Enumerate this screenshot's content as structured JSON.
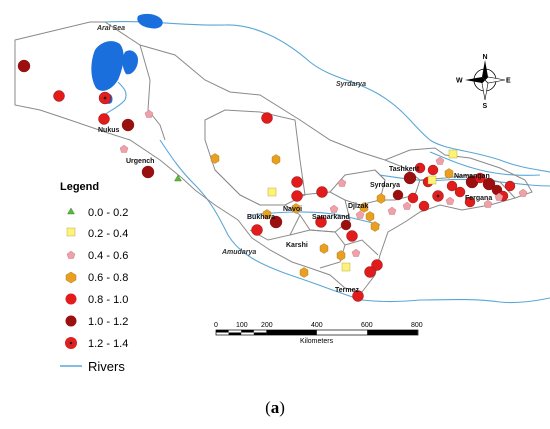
{
  "map": {
    "water_labels": {
      "aral_sea": "Aral Sea",
      "syrdarya": "Syrdarya",
      "amudarya": "Amudarya"
    },
    "cities": [
      {
        "key": "nukus",
        "label": "Nukus"
      },
      {
        "key": "urgench",
        "label": "Urgench"
      },
      {
        "key": "navoi",
        "label": "Navoi"
      },
      {
        "key": "bukhara",
        "label": "Bukhara"
      },
      {
        "key": "samarkand",
        "label": "Samarkand"
      },
      {
        "key": "djizak",
        "label": "Djizak"
      },
      {
        "key": "karshi",
        "label": "Karshi"
      },
      {
        "key": "termez",
        "label": "Termez"
      },
      {
        "key": "tashkent",
        "label": "Tashkent"
      },
      {
        "key": "syrdarya",
        "label": "Syrdarya"
      },
      {
        "key": "namangan",
        "label": "Namangan"
      },
      {
        "key": "fergana",
        "label": "Fergana"
      }
    ],
    "compass": {
      "n": "N",
      "s": "S",
      "e": "E",
      "w": "W"
    },
    "colors": {
      "water": "#1a6fdc",
      "river": "#5aa7d6",
      "boundary": "#8a8a8a",
      "c1": "#5ab83c",
      "c2": "#fff27a",
      "c3": "#f0a0a8",
      "c4": "#e8a020",
      "c5": "#e21b1b",
      "c6": "#9b0f0f",
      "c7": "#e02020"
    }
  },
  "legend": {
    "title": "Legend",
    "classes": [
      {
        "label": "0.0 - 0.2",
        "symbol": "triangle",
        "color": "#5ab83c"
      },
      {
        "label": "0.2 - 0.4",
        "symbol": "square",
        "color": "#fff27a"
      },
      {
        "label": "0.4 - 0.6",
        "symbol": "pentagon",
        "color": "#f0a0a8"
      },
      {
        "label": "0.6 - 0.8",
        "symbol": "hexagon",
        "color": "#e8a020"
      },
      {
        "label": "0.8 - 1.0",
        "symbol": "circle",
        "color": "#e21b1b"
      },
      {
        "label": "1.0 - 1.2",
        "symbol": "circle",
        "color": "#9b0f0f"
      },
      {
        "label": "1.2 - 1.4",
        "symbol": "dot-circle",
        "color": "#e02020"
      }
    ],
    "rivers_label": "Rivers"
  },
  "scale_bar": {
    "ticks": [
      "0",
      "100",
      "200",
      "400",
      "600",
      "800"
    ],
    "unit": "Kilometers"
  },
  "caption": {
    "open": "(",
    "letter": "a",
    "close": ")"
  }
}
